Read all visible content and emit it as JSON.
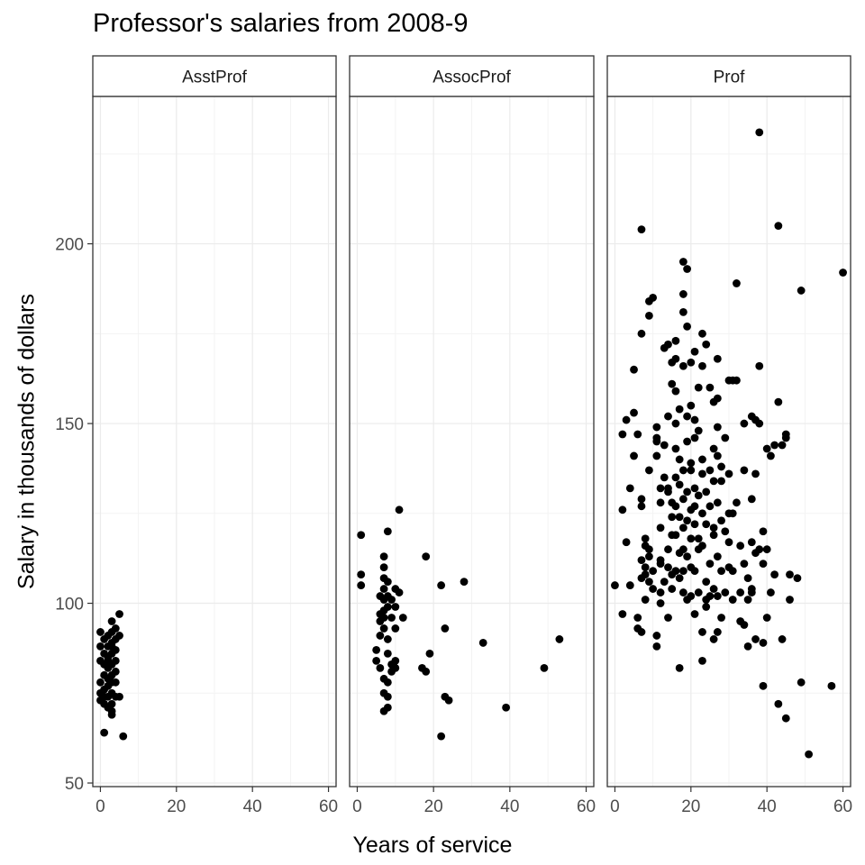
{
  "chart_data": {
    "type": "scatter",
    "title": "Professor's salaries from 2008-9",
    "xlabel": "Years of service",
    "ylabel": "Salary in thousands of dollars",
    "xlim": [
      -2,
      62
    ],
    "ylim": [
      49,
      241
    ],
    "x_ticks": [
      0,
      20,
      40,
      60
    ],
    "y_ticks": [
      50,
      100,
      150,
      200
    ],
    "grid": true,
    "point_color": "#000000",
    "facet_strip_fill": "#ffffff",
    "grid_color": "#ebebeb",
    "panels": [
      {
        "label": "AsstProf",
        "points": [
          [
            0,
            92
          ],
          [
            0,
            88
          ],
          [
            0,
            84
          ],
          [
            0,
            78
          ],
          [
            0,
            75
          ],
          [
            0,
            73
          ],
          [
            1,
            90
          ],
          [
            1,
            86
          ],
          [
            1,
            83
          ],
          [
            1,
            80
          ],
          [
            1,
            76
          ],
          [
            1,
            72
          ],
          [
            1,
            64
          ],
          [
            2,
            91
          ],
          [
            2,
            88
          ],
          [
            2,
            85
          ],
          [
            2,
            82
          ],
          [
            2,
            79
          ],
          [
            2,
            77
          ],
          [
            2,
            74
          ],
          [
            2,
            71
          ],
          [
            3,
            95
          ],
          [
            3,
            92
          ],
          [
            3,
            89
          ],
          [
            3,
            86
          ],
          [
            3,
            83
          ],
          [
            3,
            80
          ],
          [
            3,
            78
          ],
          [
            3,
            75
          ],
          [
            3,
            72
          ],
          [
            3,
            70
          ],
          [
            3,
            69
          ],
          [
            4,
            93
          ],
          [
            4,
            90
          ],
          [
            4,
            87
          ],
          [
            4,
            84
          ],
          [
            4,
            81
          ],
          [
            4,
            78
          ],
          [
            4,
            74
          ],
          [
            5,
            97
          ],
          [
            5,
            91
          ],
          [
            5,
            74
          ],
          [
            6,
            63
          ],
          [
            1,
            74
          ],
          [
            2,
            84
          ],
          [
            3,
            88
          ]
        ]
      },
      {
        "label": "AssocProf",
        "points": [
          [
            1,
            119
          ],
          [
            1,
            108
          ],
          [
            1,
            105
          ],
          [
            5,
            87
          ],
          [
            5,
            84
          ],
          [
            6,
            102
          ],
          [
            6,
            97
          ],
          [
            6,
            95
          ],
          [
            6,
            91
          ],
          [
            6,
            82
          ],
          [
            7,
            113
          ],
          [
            7,
            110
          ],
          [
            7,
            107
          ],
          [
            7,
            104
          ],
          [
            7,
            101
          ],
          [
            7,
            98
          ],
          [
            7,
            96
          ],
          [
            7,
            93
          ],
          [
            7,
            79
          ],
          [
            7,
            75
          ],
          [
            7,
            70
          ],
          [
            8,
            120
          ],
          [
            8,
            106
          ],
          [
            8,
            102
          ],
          [
            8,
            99
          ],
          [
            8,
            90
          ],
          [
            8,
            86
          ],
          [
            8,
            78
          ],
          [
            8,
            74
          ],
          [
            8,
            71
          ],
          [
            9,
            101
          ],
          [
            9,
            96
          ],
          [
            9,
            83
          ],
          [
            9,
            81
          ],
          [
            10,
            104
          ],
          [
            10,
            99
          ],
          [
            10,
            93
          ],
          [
            10,
            84
          ],
          [
            10,
            82
          ],
          [
            11,
            126
          ],
          [
            11,
            103
          ],
          [
            12,
            96
          ],
          [
            17,
            82
          ],
          [
            18,
            81
          ],
          [
            18,
            113
          ],
          [
            19,
            86
          ],
          [
            22,
            63
          ],
          [
            22,
            105
          ],
          [
            23,
            93
          ],
          [
            23,
            74
          ],
          [
            24,
            73
          ],
          [
            28,
            106
          ],
          [
            33,
            89
          ],
          [
            39,
            71
          ],
          [
            49,
            82
          ],
          [
            53,
            90
          ]
        ]
      },
      {
        "label": "Prof",
        "points": [
          [
            0,
            105
          ],
          [
            2,
            147
          ],
          [
            2,
            126
          ],
          [
            2,
            97
          ],
          [
            3,
            151
          ],
          [
            3,
            117
          ],
          [
            4,
            132
          ],
          [
            4,
            105
          ],
          [
            5,
            153
          ],
          [
            5,
            141
          ],
          [
            5,
            165
          ],
          [
            6,
            96
          ],
          [
            6,
            93
          ],
          [
            6,
            147
          ],
          [
            7,
            175
          ],
          [
            7,
            204
          ],
          [
            7,
            129
          ],
          [
            7,
            127
          ],
          [
            7,
            112
          ],
          [
            7,
            107
          ],
          [
            7,
            92
          ],
          [
            8,
            118
          ],
          [
            8,
            116
          ],
          [
            8,
            110
          ],
          [
            8,
            108
          ],
          [
            8,
            101
          ],
          [
            9,
            184
          ],
          [
            9,
            180
          ],
          [
            9,
            137
          ],
          [
            9,
            115
          ],
          [
            9,
            113
          ],
          [
            9,
            106
          ],
          [
            10,
            109
          ],
          [
            10,
            104
          ],
          [
            11,
            149
          ],
          [
            11,
            146
          ],
          [
            11,
            145
          ],
          [
            11,
            141
          ],
          [
            11,
            91
          ],
          [
            11,
            88
          ],
          [
            12,
            132
          ],
          [
            12,
            128
          ],
          [
            12,
            121
          ],
          [
            12,
            112
          ],
          [
            12,
            103
          ],
          [
            12,
            100
          ],
          [
            13,
            171
          ],
          [
            13,
            144
          ],
          [
            13,
            135
          ],
          [
            13,
            106
          ],
          [
            14,
            172
          ],
          [
            14,
            152
          ],
          [
            14,
            132
          ],
          [
            14,
            115
          ],
          [
            14,
            110
          ],
          [
            14,
            96
          ],
          [
            15,
            167
          ],
          [
            15,
            161
          ],
          [
            15,
            128
          ],
          [
            15,
            124
          ],
          [
            15,
            119
          ],
          [
            15,
            108
          ],
          [
            15,
            104
          ],
          [
            16,
            173
          ],
          [
            16,
            168
          ],
          [
            16,
            159
          ],
          [
            16,
            150
          ],
          [
            16,
            143
          ],
          [
            16,
            127
          ],
          [
            16,
            119
          ],
          [
            16,
            109
          ],
          [
            17,
            154
          ],
          [
            17,
            140
          ],
          [
            17,
            133
          ],
          [
            17,
            124
          ],
          [
            17,
            114
          ],
          [
            17,
            107
          ],
          [
            17,
            82
          ],
          [
            18,
            195
          ],
          [
            18,
            186
          ],
          [
            18,
            181
          ],
          [
            18,
            166
          ],
          [
            18,
            137
          ],
          [
            18,
            129
          ],
          [
            18,
            121
          ],
          [
            18,
            115
          ],
          [
            18,
            103
          ],
          [
            19,
            193
          ],
          [
            19,
            177
          ],
          [
            19,
            152
          ],
          [
            19,
            145
          ],
          [
            19,
            131
          ],
          [
            19,
            123
          ],
          [
            19,
            113
          ],
          [
            19,
            101
          ],
          [
            20,
            167
          ],
          [
            20,
            139
          ],
          [
            20,
            126
          ],
          [
            20,
            118
          ],
          [
            20,
            110
          ],
          [
            20,
            102
          ],
          [
            21,
            170
          ],
          [
            21,
            151
          ],
          [
            21,
            146
          ],
          [
            21,
            132
          ],
          [
            21,
            127
          ],
          [
            21,
            122
          ],
          [
            21,
            109
          ],
          [
            21,
            97
          ],
          [
            22,
            160
          ],
          [
            22,
            148
          ],
          [
            22,
            130
          ],
          [
            22,
            118
          ],
          [
            22,
            103
          ],
          [
            23,
            175
          ],
          [
            23,
            166
          ],
          [
            23,
            140
          ],
          [
            23,
            136
          ],
          [
            23,
            125
          ],
          [
            23,
            116
          ],
          [
            23,
            92
          ],
          [
            23,
            84
          ],
          [
            24,
            172
          ],
          [
            24,
            131
          ],
          [
            24,
            122
          ],
          [
            24,
            106
          ],
          [
            24,
            99
          ],
          [
            25,
            160
          ],
          [
            25,
            137
          ],
          [
            25,
            127
          ],
          [
            25,
            111
          ],
          [
            25,
            102
          ],
          [
            26,
            156
          ],
          [
            26,
            143
          ],
          [
            26,
            134
          ],
          [
            26,
            119
          ],
          [
            26,
            104
          ],
          [
            26,
            90
          ],
          [
            27,
            168
          ],
          [
            27,
            157
          ],
          [
            27,
            149
          ],
          [
            27,
            141
          ],
          [
            27,
            128
          ],
          [
            27,
            113
          ],
          [
            27,
            102
          ],
          [
            27,
            92
          ],
          [
            28,
            134
          ],
          [
            28,
            123
          ],
          [
            28,
            109
          ],
          [
            28,
            96
          ],
          [
            29,
            146
          ],
          [
            29,
            120
          ],
          [
            29,
            103
          ],
          [
            30,
            162
          ],
          [
            30,
            136
          ],
          [
            30,
            125
          ],
          [
            30,
            110
          ],
          [
            31,
            162
          ],
          [
            31,
            125
          ],
          [
            31,
            109
          ],
          [
            31,
            101
          ],
          [
            32,
            189
          ],
          [
            32,
            162
          ],
          [
            32,
            128
          ],
          [
            33,
            116
          ],
          [
            33,
            103
          ],
          [
            34,
            150
          ],
          [
            34,
            137
          ],
          [
            34,
            111
          ],
          [
            34,
            94
          ],
          [
            35,
            107
          ],
          [
            35,
            101
          ],
          [
            35,
            88
          ],
          [
            36,
            152
          ],
          [
            36,
            129
          ],
          [
            36,
            117
          ],
          [
            36,
            104
          ],
          [
            37,
            151
          ],
          [
            37,
            136
          ],
          [
            37,
            114
          ],
          [
            37,
            90
          ],
          [
            38,
            231
          ],
          [
            38,
            166
          ],
          [
            38,
            150
          ],
          [
            38,
            115
          ],
          [
            39,
            120
          ],
          [
            39,
            111
          ],
          [
            39,
            89
          ],
          [
            39,
            77
          ],
          [
            40,
            143
          ],
          [
            40,
            115
          ],
          [
            41,
            141
          ],
          [
            41,
            103
          ],
          [
            42,
            144
          ],
          [
            42,
            108
          ],
          [
            43,
            205
          ],
          [
            43,
            156
          ],
          [
            43,
            72
          ],
          [
            44,
            144
          ],
          [
            44,
            90
          ],
          [
            45,
            147
          ],
          [
            45,
            146
          ],
          [
            45,
            68
          ],
          [
            46,
            108
          ],
          [
            46,
            101
          ],
          [
            48,
            107
          ],
          [
            49,
            187
          ],
          [
            49,
            78
          ],
          [
            51,
            58
          ],
          [
            57,
            77
          ],
          [
            60,
            192
          ],
          [
            10,
            185
          ],
          [
            16,
            135
          ],
          [
            20,
            137
          ],
          [
            24,
            101
          ],
          [
            28,
            138
          ],
          [
            33,
            95
          ],
          [
            36,
            103
          ],
          [
            14,
            131
          ],
          [
            20,
            155
          ],
          [
            22,
            115
          ],
          [
            26,
            121
          ],
          [
            30,
            117
          ],
          [
            18,
            109
          ],
          [
            12,
            111
          ],
          [
            40,
            96
          ]
        ]
      }
    ]
  }
}
